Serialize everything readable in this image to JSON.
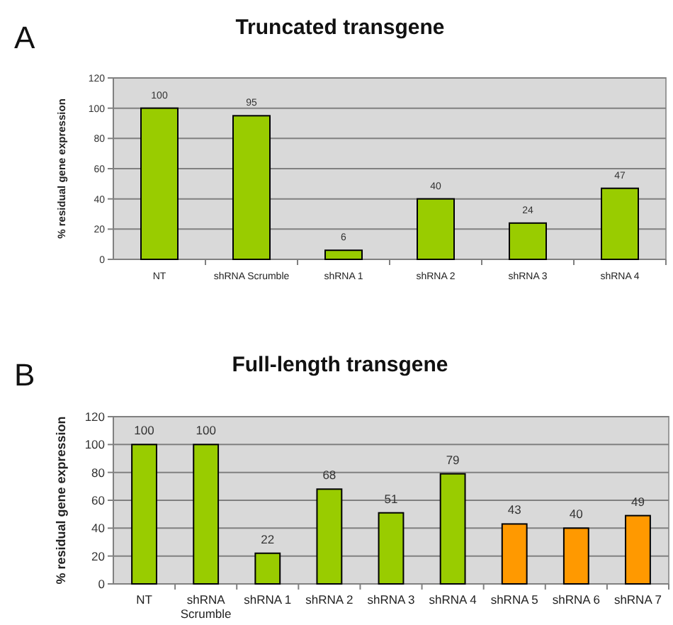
{
  "chart_data": [
    {
      "type": "bar",
      "title": "Truncated transgene",
      "ylabel": "% residual gene expression",
      "annotations": [
        "A"
      ],
      "categories": [
        "NT",
        "shRNA Scrumble",
        "shRNA 1",
        "shRNA 2",
        "shRNA 3",
        "shRNA 4"
      ],
      "values": [
        100,
        95,
        6,
        40,
        24,
        47
      ],
      "colors": [
        "#99cc00",
        "#99cc00",
        "#99cc00",
        "#99cc00",
        "#99cc00",
        "#99cc00"
      ],
      "ylim": [
        0,
        120
      ],
      "yticks": [
        0,
        20,
        40,
        60,
        80,
        100,
        120
      ],
      "grid": "y",
      "data_labels": true
    },
    {
      "type": "bar",
      "title": "Full-length transgene",
      "ylabel": "% residual gene expression",
      "annotations": [
        "B"
      ],
      "categories": [
        "NT",
        "shRNA Scrumble",
        "shRNA 1",
        "shRNA 2",
        "shRNA 3",
        "shRNA 4",
        "shRNA 5",
        "shRNA 6",
        "shRNA 7"
      ],
      "values": [
        100,
        100,
        22,
        68,
        51,
        79,
        43,
        40,
        49
      ],
      "colors": [
        "#99cc00",
        "#99cc00",
        "#99cc00",
        "#99cc00",
        "#99cc00",
        "#99cc00",
        "#ff9900",
        "#ff9900",
        "#ff9900"
      ],
      "ylim": [
        0,
        120
      ],
      "yticks": [
        0,
        20,
        40,
        60,
        80,
        100,
        120
      ],
      "grid": "y",
      "data_labels": true
    }
  ]
}
